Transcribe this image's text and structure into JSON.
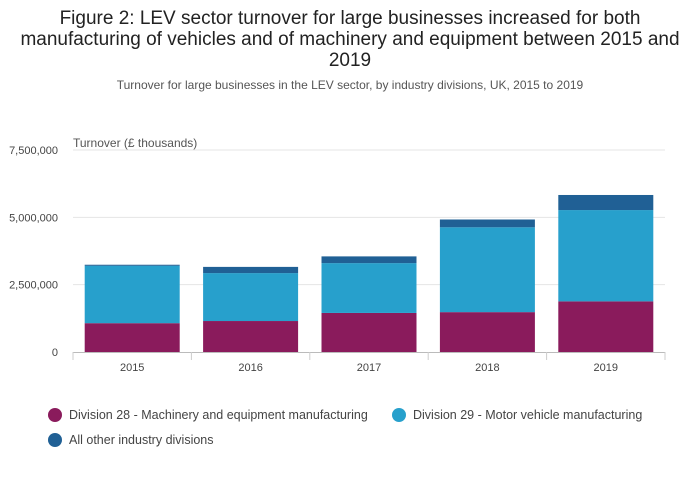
{
  "title": "Figure 2: LEV sector turnover for large businesses increased for both manufacturing of vehicles and of machinery and equipment between 2015 and 2019",
  "subtitle": "Turnover for large businesses in the LEV sector, by industry divisions, UK, 2015 to 2019",
  "chart_data": {
    "type": "bar",
    "stacked": true,
    "categories": [
      "2015",
      "2016",
      "2017",
      "2018",
      "2019"
    ],
    "ylabel": "Turnover (£ thousands)",
    "xlabel": "",
    "ylim": [
      0,
      7500000
    ],
    "yticks": [
      0,
      2500000,
      5000000,
      7500000
    ],
    "ytick_labels": [
      "0",
      "2,500,000",
      "5,000,000",
      "7,500,000"
    ],
    "grid": true,
    "legend_position": "bottom",
    "series": [
      {
        "name": "Division 28 - Machinery and equipment manufacturing",
        "color": "#8a1b5c",
        "values": [
          1070000,
          1150000,
          1450000,
          1480000,
          1880000
        ]
      },
      {
        "name": "Division 29 - Motor vehicle manufacturing",
        "color": "#27a0cc",
        "values": [
          2130000,
          1780000,
          1850000,
          3150000,
          3390000
        ]
      },
      {
        "name": "All other industry divisions",
        "color": "#206095",
        "values": [
          40000,
          230000,
          250000,
          290000,
          560000
        ]
      }
    ]
  }
}
